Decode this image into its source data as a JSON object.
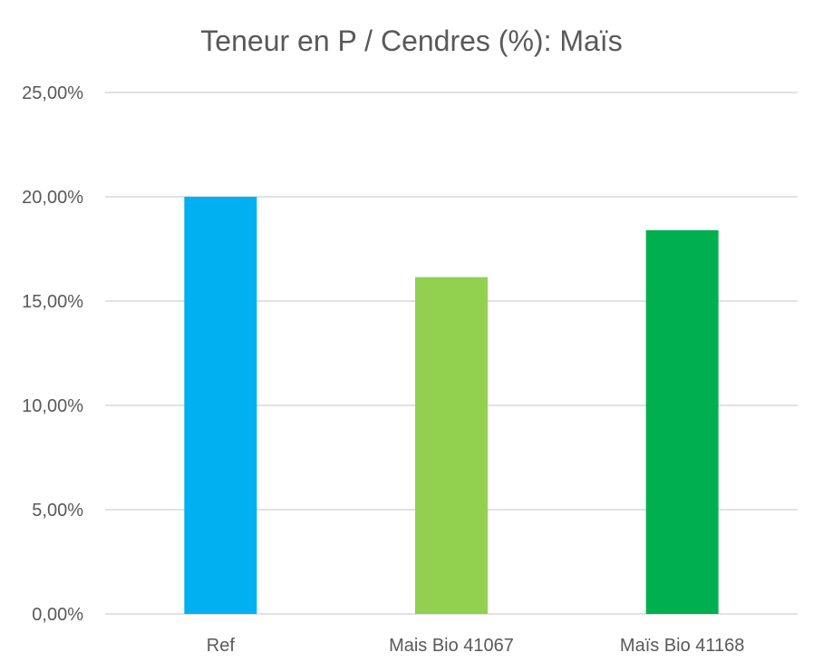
{
  "chart_data": {
    "type": "bar",
    "title": "Teneur en P / Cendres (%): Maïs",
    "categories": [
      "Ref",
      "Mais Bio 41067",
      "Maïs Bio 41168"
    ],
    "values": [
      20.0,
      16.15,
      18.4
    ],
    "colors": [
      "#00b0f0",
      "#92d050",
      "#00b050"
    ],
    "ylim": [
      0,
      25
    ],
    "yticks": [
      0,
      5,
      10,
      15,
      20,
      25
    ],
    "ytick_labels": [
      "0,00%",
      "5,00%",
      "10,00%",
      "15,00%",
      "20,00%",
      "25,00%"
    ],
    "grid": true,
    "legend": "none",
    "xlabel": "",
    "ylabel": ""
  }
}
